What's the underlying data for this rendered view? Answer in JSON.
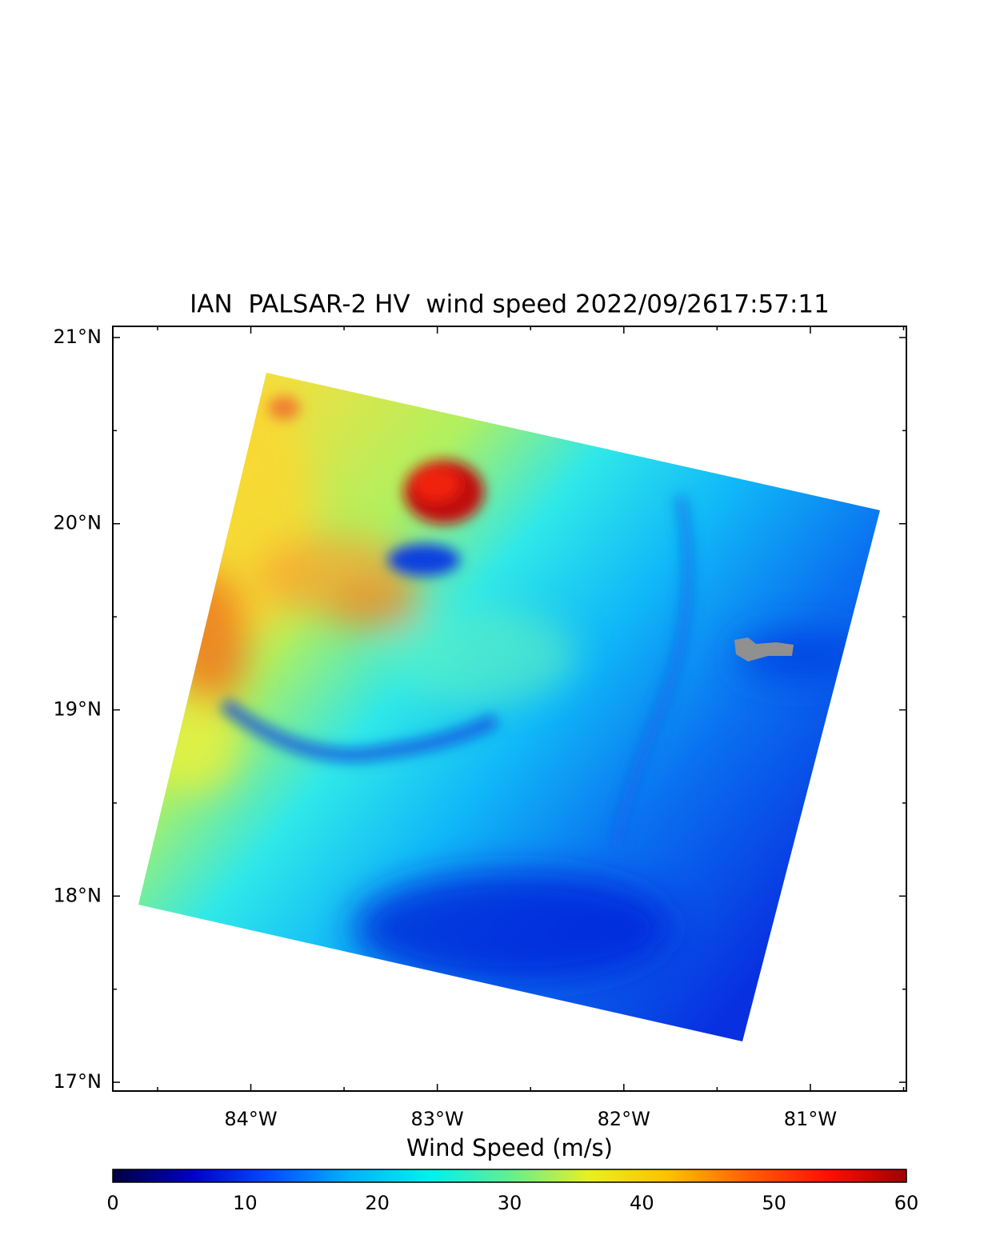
{
  "chart_data": {
    "type": "map",
    "title": "IAN  PALSAR-2 HV  wind speed 2022/09/2617:57:11",
    "xlim": [
      -84.74,
      -80.485
    ],
    "ylim": [
      16.953,
      21.06
    ],
    "xticks": [
      {
        "value": -84,
        "label": "84°W"
      },
      {
        "value": -83,
        "label": "83°W"
      },
      {
        "value": -82,
        "label": "82°W"
      },
      {
        "value": -81,
        "label": "81°W"
      }
    ],
    "yticks": [
      {
        "value": 17,
        "label": "17°N"
      },
      {
        "value": 18,
        "label": "18°N"
      },
      {
        "value": 19,
        "label": "19°N"
      },
      {
        "value": 20,
        "label": "20°N"
      },
      {
        "value": 21,
        "label": "21°N"
      }
    ],
    "xminorticks": [
      -84.5,
      -83.5,
      -82.5,
      -81.5,
      -80.5
    ],
    "yminorticks": [
      17.5,
      18.5,
      19.5,
      20.5
    ],
    "colorbar": {
      "title": "Wind Speed (m/s)",
      "lim": [
        0,
        60
      ],
      "ticks": [
        0,
        10,
        20,
        30,
        40,
        50,
        60
      ],
      "colormap": [
        "#000040",
        "#0000c8",
        "#0050ff",
        "#00b4ff",
        "#00f0f0",
        "#60f090",
        "#e8f020",
        "#ffc000",
        "#ff6000",
        "#ff1000",
        "#a00000"
      ]
    }
  }
}
